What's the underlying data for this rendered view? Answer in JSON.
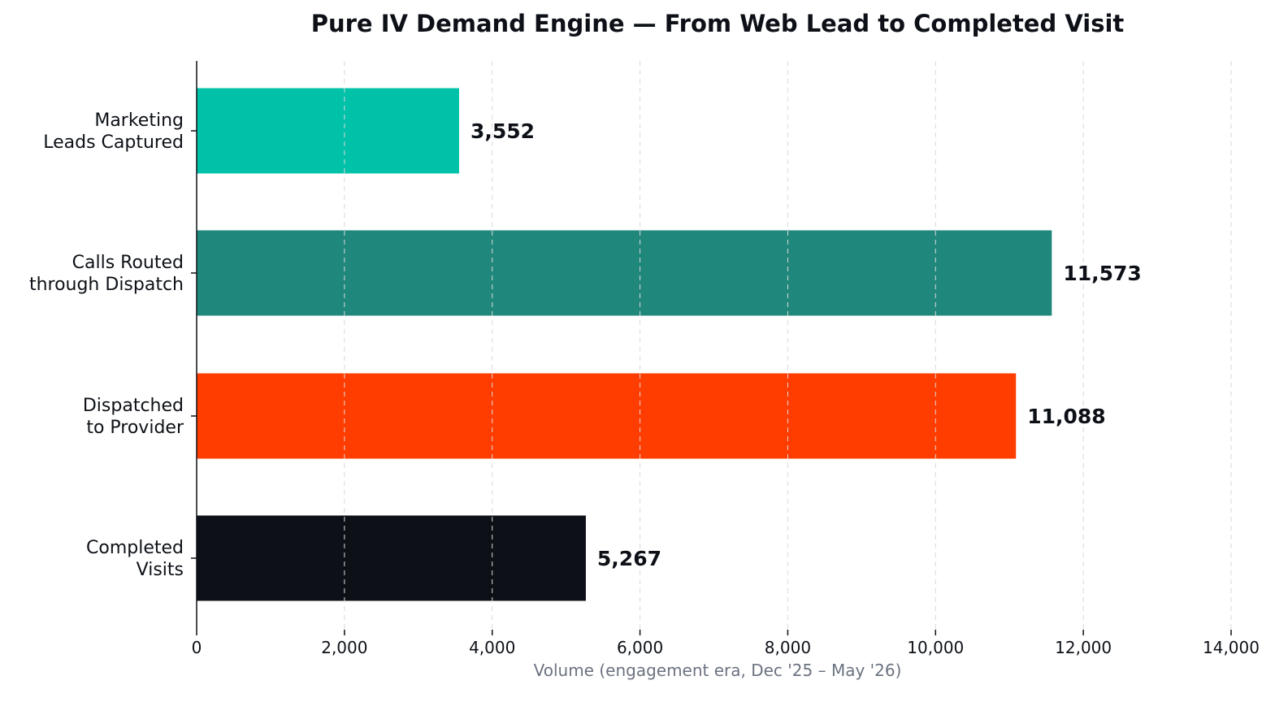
{
  "chart_data": {
    "type": "bar",
    "orientation": "horizontal",
    "title": "Pure IV Demand Engine — From Web Lead to Completed Visit",
    "xlabel": "Volume (engagement era, Dec '25 – May '26)",
    "ylabel": "",
    "xlim": [
      0,
      14000
    ],
    "xticks": [
      0,
      2000,
      4000,
      6000,
      8000,
      10000,
      12000,
      14000
    ],
    "xtick_labels": [
      "0",
      "2,000",
      "4,000",
      "6,000",
      "8,000",
      "10,000",
      "12,000",
      "14,000"
    ],
    "grid": "x-dashed",
    "categories": [
      [
        "Marketing",
        "Leads Captured"
      ],
      [
        "Calls Routed",
        "through Dispatch"
      ],
      [
        "Dispatched",
        "to Provider"
      ],
      [
        "Completed",
        "Visits"
      ]
    ],
    "values": [
      3552,
      11573,
      11088,
      5267
    ],
    "value_labels": [
      "3,552",
      "11,573",
      "11,088",
      "5,267"
    ],
    "colors": [
      "#00c2a8",
      "#20877c",
      "#ff3d00",
      "#0d1017"
    ]
  }
}
